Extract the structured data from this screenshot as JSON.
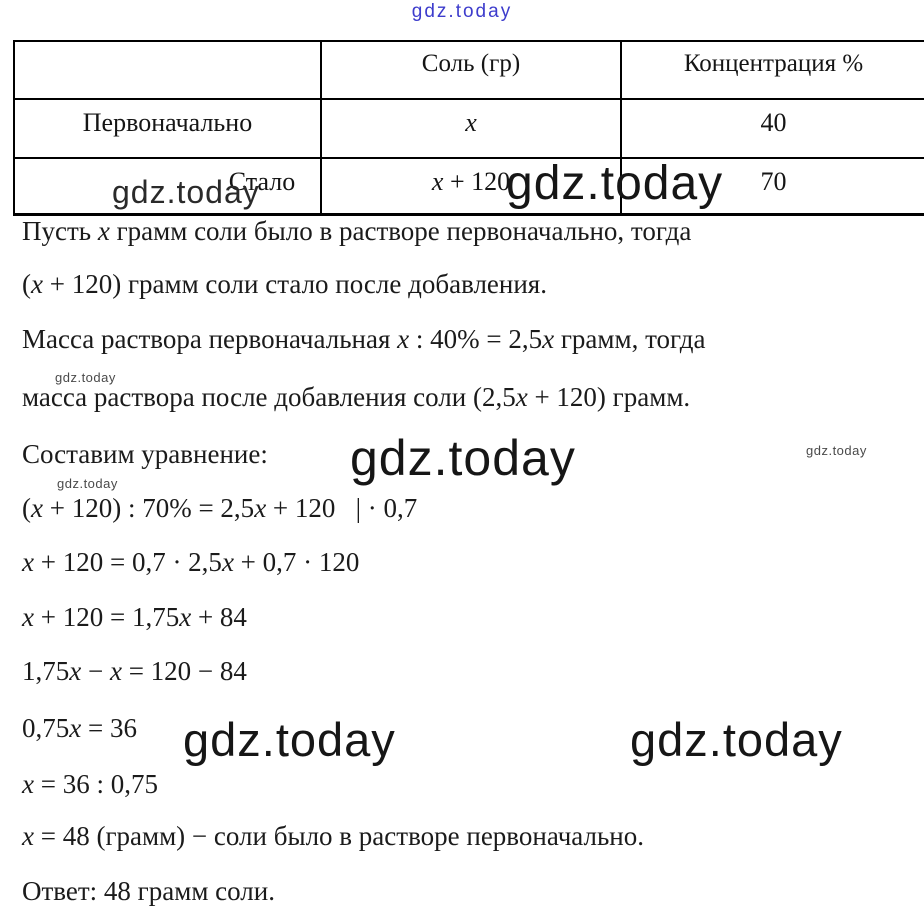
{
  "brand": {
    "name": "gdz.today",
    "color": "#3d3ccc"
  },
  "watermark": {
    "text": "gdz.today"
  },
  "table": {
    "col_headers": [
      "",
      "Соль (гр)",
      "Концентрация %"
    ],
    "rows": [
      {
        "label": "Первоначально",
        "salt": "x",
        "concentration": "40"
      },
      {
        "label": "Стало",
        "salt": "x + 120",
        "concentration": "70"
      }
    ]
  },
  "solution": {
    "lines": [
      "Пусть x грамм соли было в растворе первоначально, тогда",
      "(x + 120) грамм соли стало после добавления.",
      "Масса раствора первоначальная x : 40% = 2,5x грамм, тогда",
      "масса раствора после добавления соли (2,5x + 120) грамм.",
      "Составим уравнение:",
      "(x + 120) : 70% = 2,5x + 120   | · 0,7",
      "x + 120 = 0,7 · 2,5x + 0,7 · 120",
      "x + 120 = 1,75x + 84",
      "1,75x − x = 120 − 84",
      "0,75x = 36",
      "x = 36 : 0,75",
      "x = 48 (грамм) − соли было в растворе первоначально.",
      "Ответ: 48 грамм соли."
    ]
  }
}
